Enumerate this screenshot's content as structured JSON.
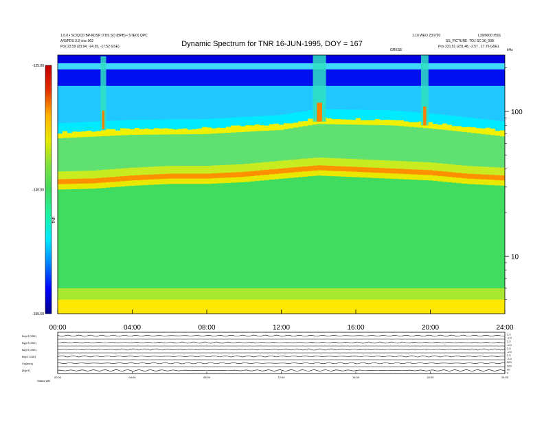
{
  "header": {
    "left_line1": "1.0.0 • SC/QCD BP-KDSP (TDS SO (BPB) • STEO) QPC",
    "left_line2": "A/S/PDS 3.3 c/sc 002",
    "left_line3": "Pos   23.59 (23.94, -24.39, -17.52 GSE)",
    "right_line1": "1.10 WEO 23/7/20",
    "right_line2": "L39/0000 ±501",
    "right_line3": "SS_PICTURE: TOJ SC 20_008",
    "right_line4": "Pos   231.51 (231.48, -2.57 , 17.76 GSE)",
    "right_corner": "kHz",
    "center_small": "GRKSE"
  },
  "chart_data": {
    "type": "heatmap",
    "title": "Dynamic Spectrum for TNR 16-JUN-1995, DOY = 167",
    "x_ticks": [
      "00:00",
      "04:00",
      "08:00",
      "12:00",
      "16:00",
      "20:00",
      "24:00"
    ],
    "xlim_hours": [
      0,
      24
    ],
    "y_right_ticks": [
      "100",
      "10"
    ],
    "y_right_tick_values": [
      100,
      10
    ],
    "ylim_khz": [
      4,
      245
    ],
    "y_scale": "log",
    "colorbar": {
      "ticks": [
        "-125.00",
        "-140.00",
        "-155.00"
      ],
      "tick_values": [
        -125,
        -140,
        -155
      ],
      "range": [
        -155,
        -125
      ],
      "label": "TNR",
      "colors": [
        "#00008b",
        "#0000ff",
        "#0080ff",
        "#00e8ff",
        "#20f0a0",
        "#40d860",
        "#80e040",
        "#e8e800",
        "#ffb000",
        "#e03000",
        "#c00000"
      ]
    },
    "noise_band_khz": [
      {
        "hour": 0,
        "khz": 32
      },
      {
        "hour": 2,
        "khz": 32.5
      },
      {
        "hour": 4,
        "khz": 34
      },
      {
        "hour": 6,
        "khz": 35
      },
      {
        "hour": 8,
        "khz": 35
      },
      {
        "hour": 10,
        "khz": 36
      },
      {
        "hour": 12,
        "khz": 38
      },
      {
        "hour": 14,
        "khz": 40
      },
      {
        "hour": 16,
        "khz": 39
      },
      {
        "hour": 18,
        "khz": 38
      },
      {
        "hour": 20,
        "khz": 37
      },
      {
        "hour": 22,
        "khz": 35
      },
      {
        "hour": 24,
        "khz": 34
      }
    ],
    "cutoff_khz": [
      {
        "hour": 0,
        "khz": 70
      },
      {
        "hour": 4,
        "khz": 74
      },
      {
        "hour": 8,
        "khz": 75
      },
      {
        "hour": 12,
        "khz": 80
      },
      {
        "hour": 14,
        "khz": 88
      },
      {
        "hour": 18,
        "khz": 86
      },
      {
        "hour": 20,
        "khz": 82
      },
      {
        "hour": 24,
        "khz": 72
      }
    ],
    "radio_bursts": [
      {
        "start": 2.3,
        "end": 2.6,
        "top_khz": 240,
        "bottom_khz": 75
      },
      {
        "start": 13.7,
        "end": 14.4,
        "top_khz": 245,
        "bottom_khz": 85
      },
      {
        "start": 19.5,
        "end": 19.9,
        "top_khz": 245,
        "bottom_khz": 80
      }
    ]
  },
  "bottom_panel": {
    "row_labels": [
      "Bx(nT,GSE)",
      "By(nT,GSE)",
      "Bz(nT,GSE)",
      "Bt(nT,GSE)",
      "Vx(km/s)",
      "|B|(nT)"
    ],
    "right_ticks": [
      "2.0",
      "-2.0",
      "2.0",
      "-2.0",
      "2.0",
      "-2.0",
      "2.0",
      "-2.0",
      "500",
      "300",
      "30",
      "0"
    ],
    "x_ticks": [
      "00:00",
      "04:00",
      "08:00",
      "12:00",
      "16:00",
      "20:00",
      "24:00"
    ],
    "footer_left": "Status   WB"
  }
}
